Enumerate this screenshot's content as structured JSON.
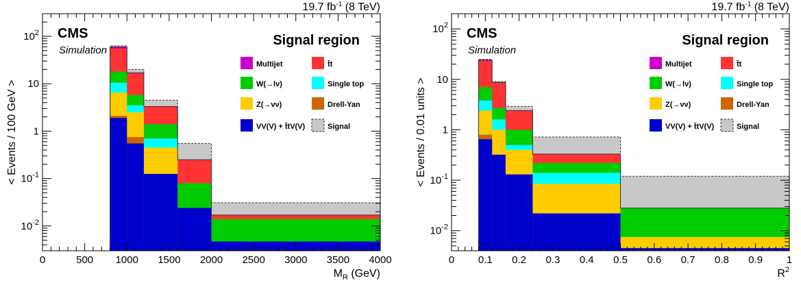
{
  "chart_data": [
    {
      "type": "stacked-histogram",
      "header": {
        "lumi": "19.7 fb",
        "lumi_sup": "-1",
        "energy": "(8 TeV)"
      },
      "cms_label": "CMS",
      "sim_label": "Simulation",
      "region_label": "Signal region",
      "xlabel": {
        "main": "M",
        "sub": "R",
        "unit": " (GeV)"
      },
      "ylabel": "< Events / 100 GeV >",
      "xlim": [
        0,
        4000
      ],
      "ylim": [
        0.003,
        300
      ],
      "ylog": true,
      "x_ticks": [
        "0",
        "500",
        "1000",
        "1500",
        "2000",
        "2500",
        "3000",
        "3500",
        "4000"
      ],
      "x_tick_values": [
        0,
        500,
        1000,
        1500,
        2000,
        2500,
        3000,
        3500,
        4000
      ],
      "bins": [
        800,
        1000,
        1200,
        1600,
        2000,
        4000
      ],
      "series": [
        {
          "name": "VV(V) + t̄tV(V)",
          "color": "#0000cc",
          "values": [
            1.9,
            0.55,
            0.125,
            0.024,
            0.0047
          ]
        },
        {
          "name": "Drell-Yan",
          "color": "#cc6600",
          "values": [
            2.1,
            0.75,
            0.125,
            0.024,
            0.0047
          ]
        },
        {
          "name": "Z(→νν)",
          "color": "#ffcc00",
          "values": [
            6.5,
            2.5,
            0.45,
            0.024,
            0.0047
          ]
        },
        {
          "name": "Single top",
          "color": "#00ffff",
          "values": [
            10.5,
            3.5,
            0.7,
            0.024,
            0.0047
          ]
        },
        {
          "name": "W(→lν)",
          "color": "#00cc00",
          "values": [
            18,
            5.8,
            1.4,
            0.08,
            0.014
          ]
        },
        {
          "name": "t̄t",
          "color": "#ff3333",
          "values": [
            55,
            16.5,
            3.3,
            0.25,
            0.017
          ]
        },
        {
          "name": "Multijet",
          "color": "#cc00cc",
          "values": [
            60,
            17,
            3.3,
            0.25,
            0.017
          ]
        }
      ],
      "signal": {
        "name": "Signal",
        "color": "#c8c8c8",
        "values": [
          63,
          20,
          4.5,
          0.55,
          0.031
        ]
      },
      "legend_order": [
        "Multijet",
        "t̄t",
        "W(→lν)",
        "Single top",
        "Z(→νν)",
        "Drell-Yan",
        "VV(V) + t̄tV(V)",
        "Signal"
      ]
    },
    {
      "type": "stacked-histogram",
      "header": {
        "lumi": "19.7 fb",
        "lumi_sup": "-1",
        "energy": "(8 TeV)"
      },
      "cms_label": "CMS",
      "sim_label": "Simulation",
      "region_label": "Signal region",
      "xlabel": {
        "main": "R",
        "sup": "2"
      },
      "ylabel": "< Events / 0.01 units >",
      "xlim": [
        0,
        1
      ],
      "ylim": [
        0.004,
        200
      ],
      "ylog": true,
      "x_ticks": [
        "0",
        "0.1",
        "0.2",
        "0.3",
        "0.4",
        "0.5",
        "0.6",
        "0.7",
        "0.8",
        "0.9",
        "1"
      ],
      "x_tick_values": [
        0,
        0.1,
        0.2,
        0.3,
        0.4,
        0.5,
        0.6,
        0.7,
        0.8,
        0.9,
        1.0
      ],
      "bins": [
        0.08,
        0.12,
        0.16,
        0.24,
        0.5,
        1.0
      ],
      "series": [
        {
          "name": "VV(V) + t̄tV(V)",
          "color": "#0000cc",
          "values": [
            0.65,
            0.32,
            0.13,
            0.022,
            0.0045
          ]
        },
        {
          "name": "Drell-Yan",
          "color": "#cc6600",
          "values": [
            0.8,
            0.32,
            0.13,
            0.022,
            0.0045
          ]
        },
        {
          "name": "Z(→νν)",
          "color": "#ffcc00",
          "values": [
            2.4,
            1.0,
            0.4,
            0.085,
            0.0075
          ]
        },
        {
          "name": "Single top",
          "color": "#00ffff",
          "values": [
            3.8,
            1.6,
            0.5,
            0.14,
            0.0075
          ]
        },
        {
          "name": "W(→lν)",
          "color": "#00cc00",
          "values": [
            7.0,
            2.7,
            1.0,
            0.22,
            0.028
          ]
        },
        {
          "name": "t̄t",
          "color": "#ff3333",
          "values": [
            23,
            8.5,
            2.4,
            0.33,
            0.028
          ]
        },
        {
          "name": "Multijet",
          "color": "#cc00cc",
          "values": [
            24,
            8.7,
            2.4,
            0.33,
            0.028
          ]
        }
      ],
      "signal": {
        "name": "Signal",
        "color": "#c8c8c8",
        "values": [
          25,
          9.0,
          2.9,
          0.72,
          0.12
        ]
      },
      "legend_order": [
        "Multijet",
        "t̄t",
        "W(→lν)",
        "Single top",
        "Z(→νν)",
        "Drell-Yan",
        "VV(V) + t̄tV(V)",
        "Signal"
      ]
    }
  ]
}
